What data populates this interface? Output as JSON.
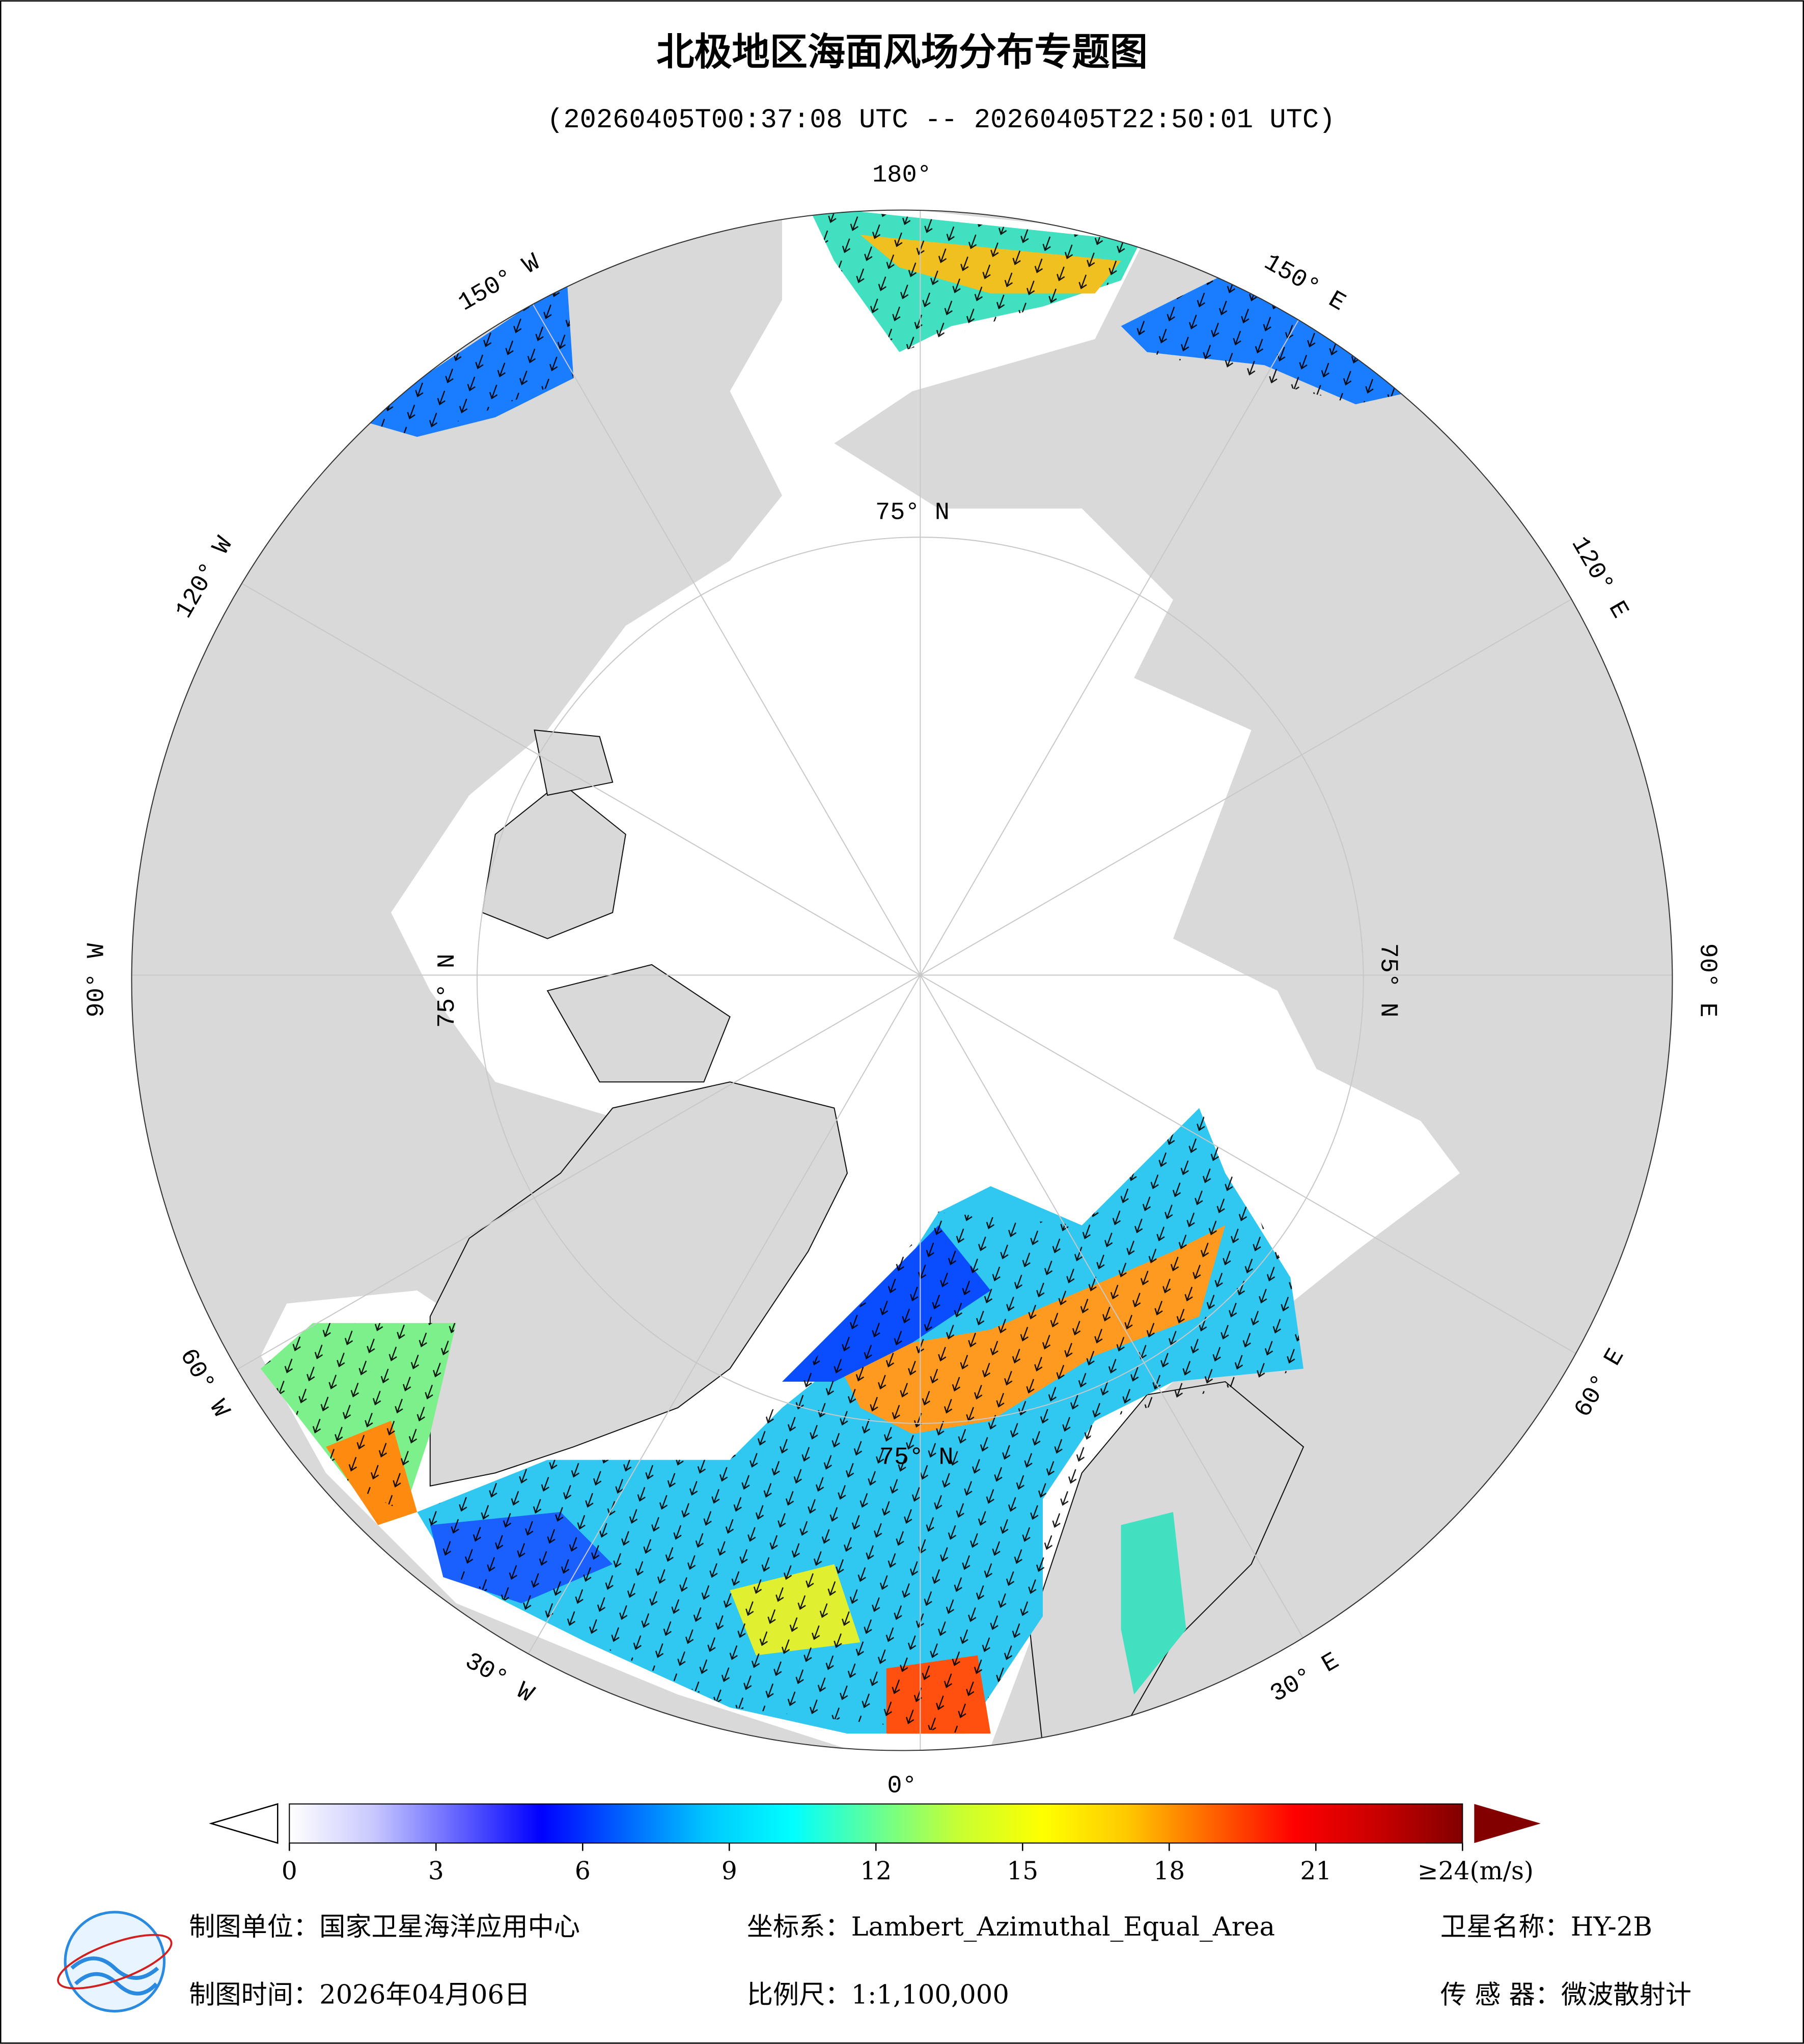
{
  "header": {
    "title": "北极地区海面风场分布专题图",
    "subtitle": "(20260405T00:37:08 UTC -- 20260405T22:50:01 UTC)"
  },
  "map": {
    "longitude_labels": [
      "180°",
      "150° E",
      "120° E",
      "90° E",
      "60° E",
      "30° E",
      "0°",
      "30° W",
      "60° W",
      "90° W",
      "120° W",
      "150° W"
    ],
    "latitude_labels": [
      "75° N",
      "75° N",
      "75° N",
      "75° N"
    ]
  },
  "colorbar": {
    "clim": [
      0,
      24
    ],
    "ticks": [
      0,
      3,
      6,
      9,
      12,
      15,
      18,
      21,
      {
        "value": 24,
        "label": "≥24(m/s)"
      }
    ],
    "colors": [
      "#ffffff",
      "#c8c8ff",
      "#6464ff",
      "#0000ff",
      "#0064ff",
      "#00c8ff",
      "#00ffff",
      "#64ff96",
      "#c8ff32",
      "#ffff00",
      "#ffc800",
      "#ff6400",
      "#ff0000",
      "#c80000",
      "#820000"
    ]
  },
  "footer": {
    "unit": "制图单位：国家卫星海洋应用中心",
    "projection": "坐标系：Lambert_Azimuthal_Equal_Area",
    "satellite": "卫星名称：HY-2B",
    "date": "制图时间：2026年04月06日",
    "scale": "比例尺：1:1,100,000",
    "sensor": "传 感 器：微波散射计"
  }
}
